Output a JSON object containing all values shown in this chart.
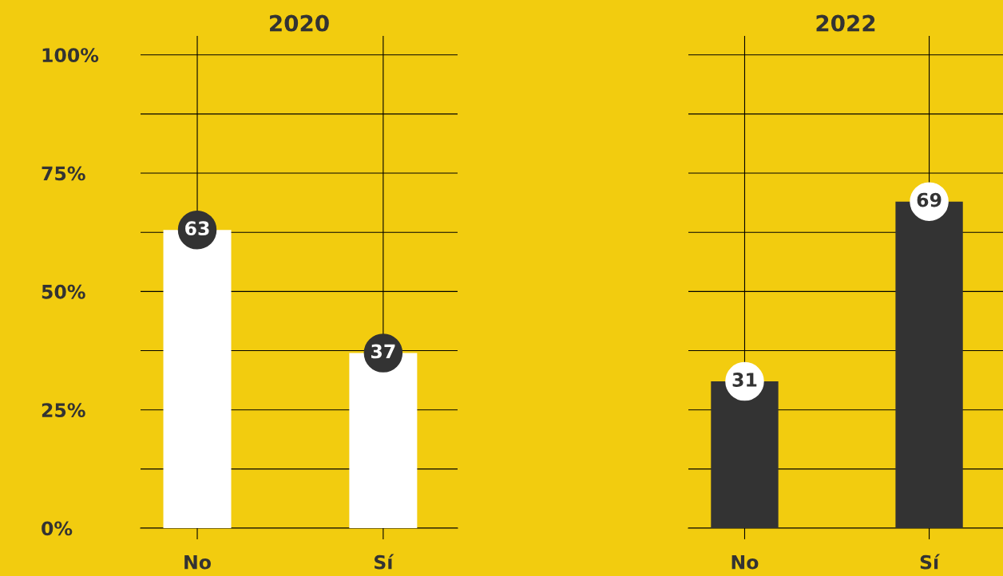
{
  "chart_data": [
    {
      "type": "bar",
      "title": "2020",
      "categories": [
        "No",
        "Sí"
      ],
      "values": [
        63,
        37
      ],
      "color": "#ffffff",
      "ylim": [
        0,
        104
      ],
      "yticks": [
        {
          "value": 0,
          "label": "0%"
        },
        {
          "value": 12.5,
          "label": null
        },
        {
          "value": 25,
          "label": "25%"
        },
        {
          "value": 37.5,
          "label": null
        },
        {
          "value": 50,
          "label": "50%"
        },
        {
          "value": 62.5,
          "label": null
        },
        {
          "value": 75,
          "label": "75%"
        },
        {
          "value": 87.5,
          "label": null
        },
        {
          "value": 100,
          "label": "100%"
        }
      ],
      "grid": true,
      "data_labels": true
    },
    {
      "type": "bar",
      "title": "2022",
      "categories": [
        "No",
        "Sí"
      ],
      "values": [
        31,
        69
      ],
      "color": "#333333",
      "ylim": [
        0,
        104
      ],
      "yticks": [
        {
          "value": 0,
          "label": null
        },
        {
          "value": 12.5,
          "label": null
        },
        {
          "value": 25,
          "label": null
        },
        {
          "value": 37.5,
          "label": null
        },
        {
          "value": 50,
          "label": null
        },
        {
          "value": 62.5,
          "label": null
        },
        {
          "value": 75,
          "label": null
        },
        {
          "value": 87.5,
          "label": null
        },
        {
          "value": 100,
          "label": null
        }
      ],
      "grid": true,
      "data_labels": true,
      "tick_labels": "x"
    }
  ]
}
